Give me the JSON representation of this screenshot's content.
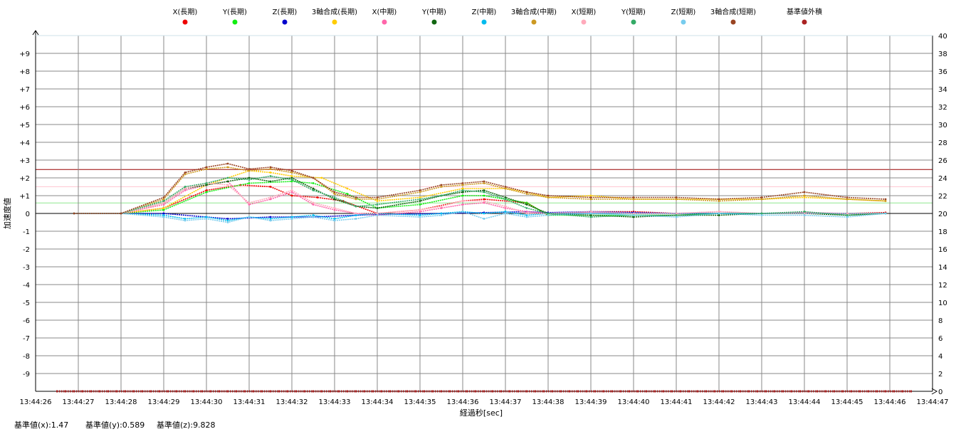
{
  "chart_data": {
    "type": "scatter",
    "title": "",
    "xlabel": "経過秒[sec]",
    "ylabel": "加速度値",
    "x_ticks": [
      "13:44:26",
      "13:44:27",
      "13:44:28",
      "13:44:29",
      "13:44:30",
      "13:44:31",
      "13:44:32",
      "13:44:33",
      "13:44:34",
      "13:44:35",
      "13:44:36",
      "13:44:37",
      "13:44:38",
      "13:44:39",
      "13:44:40",
      "13:44:41",
      "13:44:42",
      "13:44:43",
      "13:44:44",
      "13:44:45",
      "13:44:46",
      "13:44:47"
    ],
    "xlim": [
      0,
      21
    ],
    "ylim_left": [
      -10,
      10
    ],
    "y_ticks_left": [
      "+9",
      "+8",
      "+7",
      "+6",
      "+5",
      "+4",
      "+3",
      "+2",
      "+1",
      "0",
      "-1",
      "-2",
      "-3",
      "-4",
      "-5",
      "-6",
      "-7",
      "-8",
      "-9"
    ],
    "ylim_right": [
      0,
      40
    ],
    "y_ticks_right": [
      "40",
      "38",
      "36",
      "34",
      "32",
      "30",
      "28",
      "26",
      "24",
      "22",
      "20",
      "18",
      "16",
      "14",
      "12",
      "10",
      "8",
      "6",
      "4",
      "2",
      "0"
    ],
    "grid": true,
    "legend_position": "top",
    "reference_lines": [
      {
        "y": 2.47,
        "color": "#990000"
      },
      {
        "y": 2.0,
        "color": "#bb3333"
      },
      {
        "y": 1.5,
        "color": "#ffc8d2"
      },
      {
        "y": 0.59,
        "color": "#8fe88f"
      }
    ],
    "series": [
      {
        "name": "X(長期)",
        "color": "#ee0000",
        "x": [
          0.9,
          2.0,
          3.0,
          4.0,
          4.8,
          5.5,
          6.0,
          6.6,
          7.2,
          8.0,
          9.0,
          10.0,
          10.5,
          11.5,
          12.0,
          13,
          14,
          15,
          16,
          17,
          18,
          19,
          19.9
        ],
        "y": [
          0,
          0,
          0.3,
          1.3,
          1.6,
          1.5,
          1.0,
          0.9,
          0.7,
          0,
          0.2,
          0.7,
          0.8,
          0.6,
          -0.1,
          0.1,
          0.1,
          0,
          0,
          0,
          0,
          0,
          0.05
        ]
      },
      {
        "name": "Y(長期)",
        "color": "#11ee11",
        "x": [
          0.9,
          2.0,
          3.0,
          4.0,
          5.0,
          6.0,
          6.5,
          7.3,
          8.0,
          9.0,
          10.0,
          10.5,
          11.5,
          12.0,
          13,
          14,
          15,
          16,
          17,
          18,
          19,
          19.9
        ],
        "y": [
          0,
          0,
          0.2,
          1.2,
          1.7,
          1.8,
          1.7,
          1.1,
          0.3,
          0.5,
          1.0,
          1.0,
          0.6,
          -0.1,
          -0.1,
          -0.1,
          -0.1,
          0,
          0,
          0,
          0,
          0
        ]
      },
      {
        "name": "Z(長期)",
        "color": "#0000cc",
        "x": [
          0.9,
          2.0,
          3.0,
          4.0,
          4.5,
          5.5,
          6.5,
          7.5,
          8.0,
          9.5,
          10.5,
          11.5,
          12,
          13,
          14,
          15,
          16,
          17,
          18,
          19,
          19.9
        ],
        "y": [
          0,
          0,
          0,
          -0.2,
          -0.3,
          -0.2,
          -0.2,
          -0.1,
          -0.05,
          0,
          0.05,
          0.1,
          0.05,
          0.1,
          0.05,
          0,
          0,
          0,
          0.02,
          0,
          0
        ]
      },
      {
        "name": "3軸合成(長期)",
        "color": "#ffcc00",
        "x": [
          0.9,
          2.0,
          3.0,
          4.0,
          5.0,
          5.5,
          6.0,
          6.7,
          7.3,
          8.0,
          9.0,
          10.0,
          11.0,
          11.5,
          12,
          13,
          14,
          15,
          16,
          17,
          18,
          19,
          19.9
        ],
        "y": [
          0,
          0,
          0.3,
          1.6,
          2.4,
          2.3,
          2.1,
          2.0,
          1.4,
          0.7,
          0.9,
          1.4,
          1.4,
          1.2,
          0.9,
          1.0,
          0.8,
          0.8,
          0.8,
          0.8,
          0.9,
          0.8,
          0.7
        ]
      },
      {
        "name": "X(中期)",
        "color": "#ff66aa",
        "x": [
          0.9,
          2.0,
          3.0,
          3.5,
          4.0,
          4.5,
          5.0,
          5.5,
          6.0,
          6.5,
          7.0,
          7.5,
          8.0,
          9.0,
          9.5,
          10.0,
          10.5,
          11.0,
          11.5,
          12,
          13,
          14,
          15,
          16,
          17,
          18,
          19,
          19.9
        ],
        "y": [
          0,
          0,
          0.5,
          1.3,
          1.6,
          1.8,
          0.5,
          0.8,
          1.2,
          0.5,
          0.2,
          0,
          -0.1,
          0.1,
          0.3,
          0.5,
          0.6,
          0.3,
          0.1,
          0,
          0.05,
          0,
          0,
          0.1,
          0,
          0.05,
          0,
          0
        ]
      },
      {
        "name": "Y(中期)",
        "color": "#116611",
        "x": [
          0.9,
          2.0,
          3.0,
          3.5,
          4.0,
          4.5,
          5.0,
          5.5,
          6.0,
          6.5,
          7.0,
          7.5,
          8.0,
          9.0,
          9.5,
          10.0,
          10.5,
          11.0,
          11.5,
          12,
          13,
          14,
          15,
          16,
          17,
          18,
          19,
          19.9
        ],
        "y": [
          0,
          0,
          0.6,
          1.4,
          1.6,
          1.8,
          2.0,
          1.8,
          2.0,
          1.4,
          0.8,
          0.4,
          0.3,
          0.7,
          1.0,
          1.2,
          1.3,
          0.9,
          0.5,
          0,
          -0.1,
          -0.2,
          -0.1,
          -0.1,
          0,
          0,
          -0.1,
          0
        ]
      },
      {
        "name": "Z(中期)",
        "color": "#00bbee",
        "x": [
          0.9,
          2.0,
          3.0,
          3.5,
          4.0,
          4.5,
          5.0,
          5.5,
          6.0,
          6.5,
          7.0,
          7.5,
          8.0,
          9.0,
          9.5,
          10.0,
          10.5,
          11.0,
          11.5,
          12,
          13,
          14,
          15,
          16,
          17,
          18,
          19,
          19.9
        ],
        "y": [
          0,
          0,
          -0.1,
          -0.3,
          -0.2,
          -0.4,
          -0.2,
          -0.3,
          -0.2,
          -0.1,
          -0.3,
          -0.1,
          0,
          -0.1,
          0,
          0.1,
          0,
          0.1,
          -0.1,
          0,
          0,
          0,
          0,
          0,
          0,
          0,
          0,
          0
        ]
      },
      {
        "name": "3軸合成(中期)",
        "color": "#cc9922",
        "x": [
          0.9,
          2.0,
          3.0,
          3.5,
          4.0,
          4.5,
          5.0,
          5.5,
          6.0,
          6.5,
          7.0,
          7.5,
          8.0,
          9.0,
          9.5,
          10.0,
          10.5,
          11.0,
          11.5,
          12,
          13,
          14,
          15,
          16,
          17,
          18,
          19,
          19.9
        ],
        "y": [
          0,
          0,
          0.8,
          2.2,
          2.5,
          2.6,
          2.4,
          2.5,
          2.3,
          2.0,
          1.1,
          0.8,
          0.8,
          1.2,
          1.5,
          1.6,
          1.7,
          1.4,
          1.1,
          0.9,
          0.8,
          0.8,
          0.8,
          0.7,
          0.8,
          1.0,
          0.8,
          0.7
        ]
      },
      {
        "name": "X(短期)",
        "color": "#ffaabb",
        "x": [
          0.9,
          2.0,
          3.0,
          3.5,
          4.0,
          4.5,
          5.0,
          5.5,
          6.0,
          6.5,
          7.0,
          7.5,
          8.0,
          9.0,
          9.5,
          10.0,
          10.5,
          11.0,
          11.5,
          12,
          13,
          14,
          15,
          16,
          17,
          18,
          19,
          19.9
        ],
        "y": [
          0,
          0,
          0.6,
          1.4,
          1.7,
          1.6,
          0.6,
          0.9,
          1.3,
          0.6,
          0.3,
          0,
          0,
          0.2,
          0.4,
          0.7,
          0.7,
          0.4,
          0,
          0,
          0.1,
          0,
          0,
          0.1,
          0,
          0,
          0,
          0
        ]
      },
      {
        "name": "Y(短期)",
        "color": "#33aa66",
        "x": [
          0.9,
          2.0,
          3.0,
          3.5,
          4.0,
          4.5,
          5.0,
          5.5,
          6.0,
          6.5,
          7.0,
          7.5,
          8.0,
          9.0,
          9.5,
          10.0,
          10.5,
          11.0,
          11.5,
          12,
          13,
          14,
          15,
          16,
          17,
          18,
          19,
          19.9
        ],
        "y": [
          0,
          0,
          0.7,
          1.5,
          1.7,
          2.0,
          1.9,
          2.1,
          1.9,
          1.3,
          0.9,
          0.4,
          0.5,
          0.8,
          1.0,
          1.3,
          1.2,
          0.8,
          0.3,
          0,
          -0.2,
          -0.1,
          -0.1,
          0,
          0,
          0.1,
          -0.1,
          0
        ]
      },
      {
        "name": "Z(短期)",
        "color": "#77ccee",
        "x": [
          0.9,
          2.0,
          3.0,
          3.5,
          4.0,
          4.5,
          5.0,
          5.5,
          6.0,
          6.5,
          7.0,
          7.5,
          8.0,
          9.0,
          9.5,
          10.0,
          10.5,
          11.0,
          11.5,
          12,
          13,
          14,
          15,
          16,
          17,
          18,
          19,
          19.9
        ],
        "y": [
          0,
          0,
          -0.2,
          -0.4,
          -0.3,
          -0.5,
          -0.2,
          -0.4,
          -0.3,
          -0.2,
          -0.4,
          -0.3,
          -0.1,
          -0.2,
          -0.1,
          0.1,
          -0.3,
          0,
          -0.2,
          -0.1,
          0,
          -0.1,
          -0.2,
          0,
          -0.1,
          -0.1,
          -0.2,
          0
        ]
      },
      {
        "name": "3軸合成(短期)",
        "color": "#994422",
        "x": [
          0.9,
          2.0,
          3.0,
          3.5,
          4.0,
          4.5,
          5.0,
          5.5,
          6.0,
          6.5,
          7.0,
          7.5,
          8.0,
          9.0,
          9.5,
          10.0,
          10.5,
          11.0,
          11.5,
          12,
          13,
          14,
          15,
          16,
          17,
          18,
          19,
          19.9
        ],
        "y": [
          0,
          0,
          0.9,
          2.3,
          2.6,
          2.8,
          2.5,
          2.6,
          2.4,
          2.0,
          1.2,
          0.9,
          0.9,
          1.3,
          1.6,
          1.7,
          1.8,
          1.5,
          1.2,
          1.0,
          0.9,
          0.9,
          0.9,
          0.8,
          0.9,
          1.2,
          0.9,
          0.8
        ]
      },
      {
        "name": "基準値外積",
        "color": "#aa2222",
        "axis": "right",
        "x": [
          0.5,
          20.5
        ],
        "y": [
          0,
          0
        ]
      }
    ]
  },
  "footer": {
    "ref_x": "基準値(x):1.47",
    "ref_y": "基準値(y):0.589",
    "ref_z": "基準値(z):9.828"
  }
}
